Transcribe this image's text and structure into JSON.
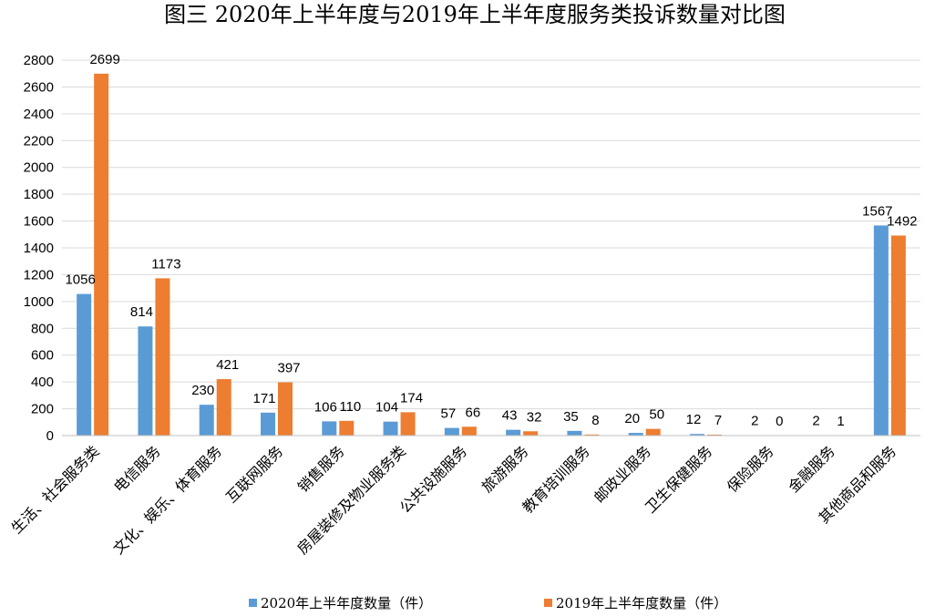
{
  "chart_data": {
    "type": "bar",
    "title": "图三  2020年上半年度与2019年上半年度服务类投诉数量对比图",
    "categories": [
      "生活、社会服务类",
      "电信服务",
      "文化、娱乐、体育服务",
      "互联网服务",
      "销售服务",
      "房屋装修及物业服务类",
      "公共设施服务",
      "旅游服务",
      "教育培训服务",
      "邮政业服务",
      "卫生保健服务",
      "保险服务",
      "金融服务",
      "其他商品和服务"
    ],
    "series": [
      {
        "name": "2020年上半年度数量（件）",
        "color": "#5b9bd5",
        "values": [
          1056,
          814,
          230,
          171,
          106,
          104,
          57,
          43,
          35,
          20,
          12,
          2,
          2,
          1567
        ]
      },
      {
        "name": "2019年上半年度数量（件）",
        "color": "#ed7d31",
        "values": [
          2699,
          1173,
          421,
          397,
          110,
          174,
          66,
          32,
          8,
          50,
          7,
          0,
          1,
          1492
        ]
      }
    ],
    "ylim": [
      0,
      2800
    ],
    "yticks": [
      "0",
      "200",
      "400",
      "600",
      "800",
      "1000",
      "1200",
      "1400",
      "1600",
      "1800",
      "2000",
      "2200",
      "2400",
      "2600",
      "2800"
    ],
    "grid": true,
    "legend_position": "bottom",
    "data_labels": true
  }
}
